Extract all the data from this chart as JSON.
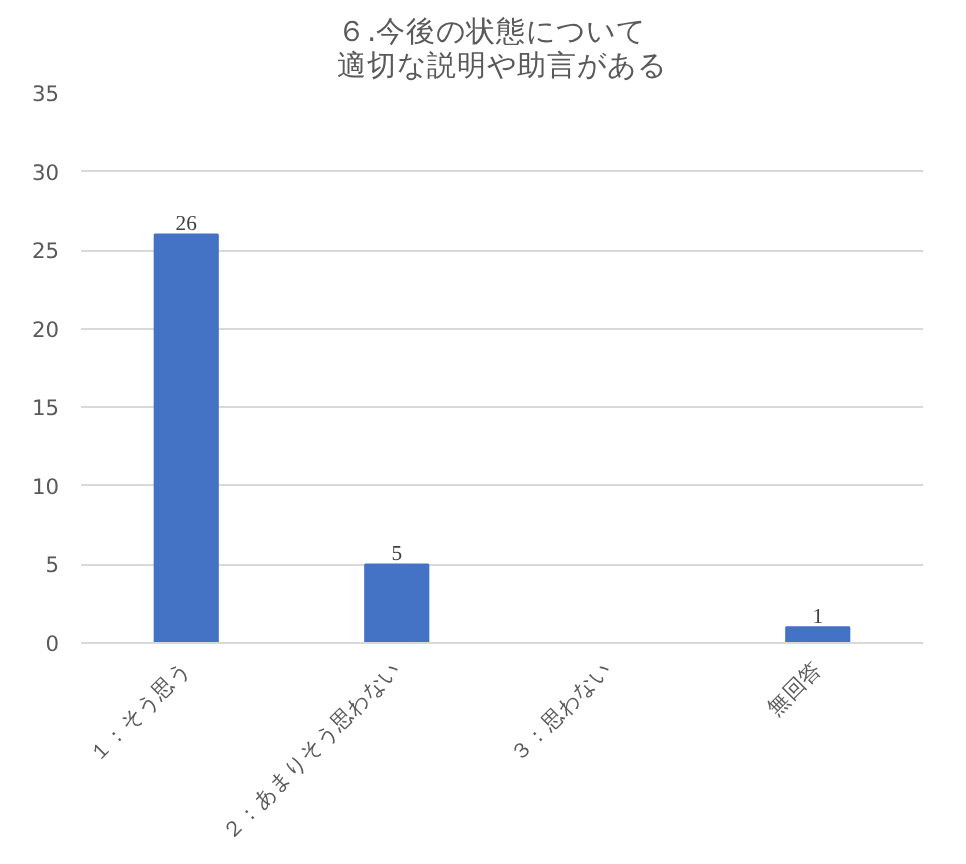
{
  "chart_data": {
    "type": "bar",
    "title": "６.今後の状態について適切な説明や助言がある",
    "categories": [
      "１：そう思う",
      "２：あまりそう思わない",
      "３：思わない",
      "無回答"
    ],
    "values": [
      26,
      5,
      0,
      1
    ],
    "color": "#4472c4",
    "value_labels": [
      "26",
      "5",
      null,
      "1"
    ],
    "ylim": [
      0,
      35
    ],
    "yticks": [
      0,
      5,
      10,
      15,
      20,
      25,
      30,
      35
    ],
    "grid": "y"
  }
}
